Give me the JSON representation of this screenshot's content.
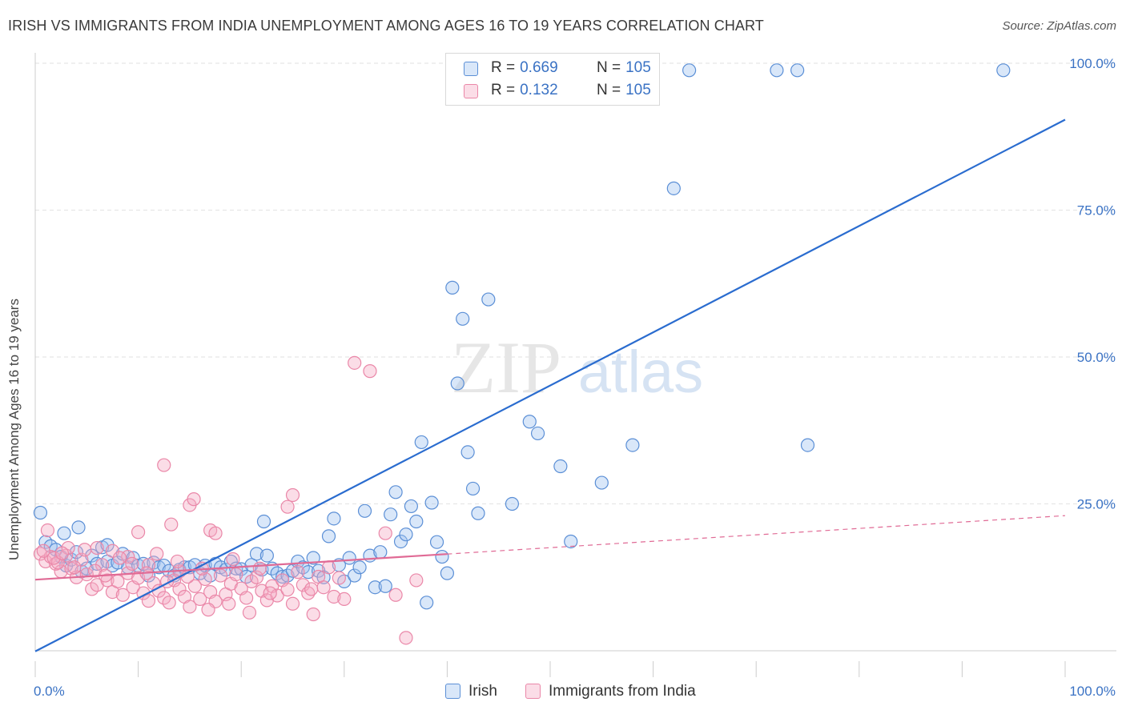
{
  "title": "IRISH VS IMMIGRANTS FROM INDIA UNEMPLOYMENT AMONG AGES 16 TO 19 YEARS CORRELATION CHART",
  "source": "Source: ZipAtlas.com",
  "watermark": {
    "zip": "ZIP",
    "atlas": "atlas"
  },
  "legend_top": {
    "rows": [
      {
        "r_label": "R =",
        "r_value": "0.669",
        "n_label": "N =",
        "n_value": "105"
      },
      {
        "r_label": "R =",
        "r_value": "0.132",
        "n_label": "N =",
        "n_value": "105"
      }
    ]
  },
  "legend_bottom": {
    "items": [
      "Irish",
      "Immigrants from India"
    ]
  },
  "colors": {
    "irish_fill": "rgba(160,196,240,0.40)",
    "irish_stroke": "#5b8fd6",
    "irish_line": "#2a6ccf",
    "india_fill": "rgba(244,170,195,0.40)",
    "india_stroke": "#ea87a8",
    "india_line": "#e06a95",
    "axis_label": "#3a72c4",
    "grid": "#e2e2e2"
  },
  "chart_data": {
    "type": "scatter",
    "title": "IRISH VS IMMIGRANTS FROM INDIA UNEMPLOYMENT AMONG AGES 16 TO 19 YEARS CORRELATION CHART",
    "xlabel": "",
    "ylabel": "Unemployment Among Ages 16 to 19 years",
    "xlim": [
      0,
      100
    ],
    "ylim": [
      0,
      100
    ],
    "x_tick_labels": [
      "0.0%",
      "100.0%"
    ],
    "y_tick_labels": [
      "25.0%",
      "50.0%",
      "75.0%",
      "100.0%"
    ],
    "y_ticks": [
      25,
      50,
      75,
      100
    ],
    "grid": true,
    "series": [
      {
        "name": "Irish",
        "r": 0.669,
        "n": 105,
        "trend": {
          "x": [
            0,
            100
          ],
          "y": [
            -0.1,
            90.4
          ],
          "dashed_from": null
        },
        "points": [
          [
            0.5,
            23.5
          ],
          [
            1.0,
            18.5
          ],
          [
            1.5,
            17.8
          ],
          [
            2.0,
            17.2
          ],
          [
            2.5,
            16.0
          ],
          [
            3.0,
            14.5
          ],
          [
            3.5,
            15.5
          ],
          [
            4.0,
            16.8
          ],
          [
            4.5,
            13.5
          ],
          [
            5.0,
            14.0
          ],
          [
            5.5,
            16.2
          ],
          [
            6.0,
            14.8
          ],
          [
            6.5,
            17.6
          ],
          [
            7.0,
            15.2
          ],
          [
            7.5,
            14.5
          ],
          [
            8.0,
            15.0
          ],
          [
            8.5,
            16.5
          ],
          [
            9.0,
            14.2
          ],
          [
            9.5,
            15.8
          ],
          [
            10.0,
            14.5
          ],
          [
            10.5,
            14.8
          ],
          [
            11.0,
            12.8
          ],
          [
            11.5,
            15.0
          ],
          [
            12.0,
            14.2
          ],
          [
            12.5,
            14.5
          ],
          [
            13.0,
            13.6
          ],
          [
            13.5,
            12.8
          ],
          [
            14.0,
            13.8
          ],
          [
            14.5,
            14.2
          ],
          [
            15.0,
            14.2
          ],
          [
            15.5,
            14.6
          ],
          [
            16.0,
            13.2
          ],
          [
            16.5,
            14.5
          ],
          [
            17.0,
            12.8
          ],
          [
            17.5,
            14.8
          ],
          [
            18.0,
            14.2
          ],
          [
            18.5,
            13.8
          ],
          [
            19.0,
            15.2
          ],
          [
            19.5,
            14.0
          ],
          [
            20.0,
            13.9
          ],
          [
            20.5,
            12.6
          ],
          [
            21.0,
            14.6
          ],
          [
            21.5,
            16.5
          ],
          [
            22.0,
            13.8
          ],
          [
            22.5,
            16.2
          ],
          [
            23.0,
            14.0
          ],
          [
            23.5,
            13.2
          ],
          [
            24.0,
            12.6
          ],
          [
            24.5,
            12.8
          ],
          [
            25.0,
            13.6
          ],
          [
            25.5,
            15.2
          ],
          [
            26.0,
            14.2
          ],
          [
            26.5,
            13.4
          ],
          [
            27.0,
            15.8
          ],
          [
            27.5,
            13.6
          ],
          [
            28.0,
            12.5
          ],
          [
            28.5,
            19.5
          ],
          [
            29.0,
            22.5
          ],
          [
            29.5,
            14.6
          ],
          [
            30.0,
            11.8
          ],
          [
            30.5,
            15.8
          ],
          [
            31.0,
            12.8
          ],
          [
            31.5,
            14.2
          ],
          [
            32.0,
            23.8
          ],
          [
            32.5,
            16.2
          ],
          [
            33.0,
            10.8
          ],
          [
            33.5,
            16.8
          ],
          [
            34.0,
            11.0
          ],
          [
            34.5,
            23.2
          ],
          [
            35.0,
            27.0
          ],
          [
            35.5,
            18.6
          ],
          [
            36.0,
            19.8
          ],
          [
            36.5,
            24.6
          ],
          [
            37.0,
            22.0
          ],
          [
            37.5,
            35.5
          ],
          [
            38.0,
            8.2
          ],
          [
            38.5,
            25.2
          ],
          [
            39.0,
            18.5
          ],
          [
            39.5,
            16.0
          ],
          [
            40.0,
            13.2
          ],
          [
            40.5,
            61.8
          ],
          [
            41.0,
            45.5
          ],
          [
            41.5,
            56.5
          ],
          [
            42.0,
            33.8
          ],
          [
            42.5,
            27.6
          ],
          [
            43.0,
            23.4
          ],
          [
            44.0,
            59.8
          ],
          [
            48.0,
            39.0
          ],
          [
            48.8,
            37.0
          ],
          [
            51.0,
            31.4
          ],
          [
            52.0,
            18.6
          ],
          [
            55.0,
            28.6
          ],
          [
            58.0,
            35.0
          ],
          [
            62.0,
            78.7
          ],
          [
            63.5,
            98.8
          ],
          [
            72.0,
            98.8
          ],
          [
            74.0,
            98.8
          ],
          [
            75.0,
            35.0
          ],
          [
            94.0,
            98.8
          ],
          [
            4.2,
            21.0
          ],
          [
            2.8,
            20.0
          ],
          [
            7.0,
            18.0
          ],
          [
            22.2,
            22.0
          ],
          [
            50.0,
            98.8
          ],
          [
            46.3,
            25.0
          ]
        ]
      },
      {
        "name": "Immigrants from India",
        "r": 0.132,
        "n": 105,
        "trend": {
          "x": [
            0,
            100
          ],
          "y": [
            12.1,
            23.0
          ],
          "dashed_from": 40
        },
        "points": [
          [
            0.5,
            16.5
          ],
          [
            1.0,
            15.2
          ],
          [
            1.5,
            16.0
          ],
          [
            2.0,
            14.8
          ],
          [
            2.5,
            13.5
          ],
          [
            3.0,
            16.2
          ],
          [
            3.5,
            14.0
          ],
          [
            4.0,
            12.5
          ],
          [
            4.5,
            15.5
          ],
          [
            5.0,
            13.0
          ],
          [
            5.5,
            10.5
          ],
          [
            6.0,
            11.2
          ],
          [
            6.5,
            14.6
          ],
          [
            7.0,
            12.0
          ],
          [
            7.5,
            10.0
          ],
          [
            8.0,
            11.8
          ],
          [
            8.5,
            9.5
          ],
          [
            9.0,
            13.2
          ],
          [
            9.5,
            10.8
          ],
          [
            10.0,
            12.4
          ],
          [
            10.5,
            9.8
          ],
          [
            11.0,
            8.5
          ],
          [
            11.5,
            11.5
          ],
          [
            12.0,
            10.2
          ],
          [
            12.5,
            9.0
          ],
          [
            13.0,
            8.2
          ],
          [
            13.5,
            12.0
          ],
          [
            14.0,
            10.5
          ],
          [
            14.5,
            9.2
          ],
          [
            15.0,
            7.5
          ],
          [
            15.5,
            11.0
          ],
          [
            16.0,
            8.8
          ],
          [
            16.5,
            12.2
          ],
          [
            17.0,
            10.0
          ],
          [
            17.5,
            8.4
          ],
          [
            18.0,
            12.8
          ],
          [
            18.5,
            9.6
          ],
          [
            19.0,
            11.4
          ],
          [
            19.5,
            13.0
          ],
          [
            20.0,
            10.6
          ],
          [
            20.5,
            9.0
          ],
          [
            21.0,
            11.8
          ],
          [
            21.5,
            12.5
          ],
          [
            22.0,
            10.2
          ],
          [
            22.5,
            8.6
          ],
          [
            23.0,
            11.0
          ],
          [
            23.5,
            9.4
          ],
          [
            24.0,
            12.0
          ],
          [
            24.5,
            10.4
          ],
          [
            25.0,
            8.0
          ],
          [
            25.5,
            13.4
          ],
          [
            26.0,
            11.2
          ],
          [
            26.5,
            9.8
          ],
          [
            27.0,
            6.2
          ],
          [
            27.5,
            12.6
          ],
          [
            28.0,
            10.8
          ],
          [
            28.5,
            14.2
          ],
          [
            29.0,
            9.2
          ],
          [
            29.5,
            12.4
          ],
          [
            30.0,
            8.8
          ],
          [
            31.0,
            49.0
          ],
          [
            32.5,
            47.6
          ],
          [
            34.0,
            20.0
          ],
          [
            35.0,
            9.5
          ],
          [
            36.0,
            2.2
          ],
          [
            37.0,
            12.0
          ],
          [
            9.0,
            16.0
          ],
          [
            10.0,
            20.2
          ],
          [
            12.5,
            31.6
          ],
          [
            13.2,
            21.5
          ],
          [
            15.0,
            24.8
          ],
          [
            15.4,
            25.8
          ],
          [
            17.0,
            20.5
          ],
          [
            17.5,
            20.0
          ],
          [
            24.5,
            24.5
          ],
          [
            25.0,
            26.5
          ],
          [
            6.0,
            17.5
          ],
          [
            7.5,
            17.0
          ],
          [
            11.0,
            14.6
          ],
          [
            14.0,
            13.5
          ],
          [
            1.2,
            20.5
          ],
          [
            2.2,
            15.0
          ],
          [
            3.2,
            17.5
          ],
          [
            4.8,
            17.2
          ],
          [
            8.2,
            15.8
          ],
          [
            11.8,
            16.5
          ],
          [
            13.8,
            15.2
          ],
          [
            16.2,
            14.0
          ],
          [
            19.2,
            15.6
          ],
          [
            21.8,
            14.0
          ],
          [
            0.8,
            17.0
          ],
          [
            1.8,
            15.8
          ],
          [
            2.6,
            16.6
          ],
          [
            3.8,
            14.2
          ],
          [
            5.8,
            13.6
          ],
          [
            6.8,
            12.8
          ],
          [
            9.4,
            14.8
          ],
          [
            10.8,
            13.2
          ],
          [
            12.8,
            11.8
          ],
          [
            14.8,
            12.6
          ],
          [
            16.8,
            7.0
          ],
          [
            18.8,
            8.0
          ],
          [
            20.8,
            6.5
          ],
          [
            22.8,
            9.8
          ],
          [
            26.8,
            10.5
          ]
        ]
      }
    ]
  }
}
